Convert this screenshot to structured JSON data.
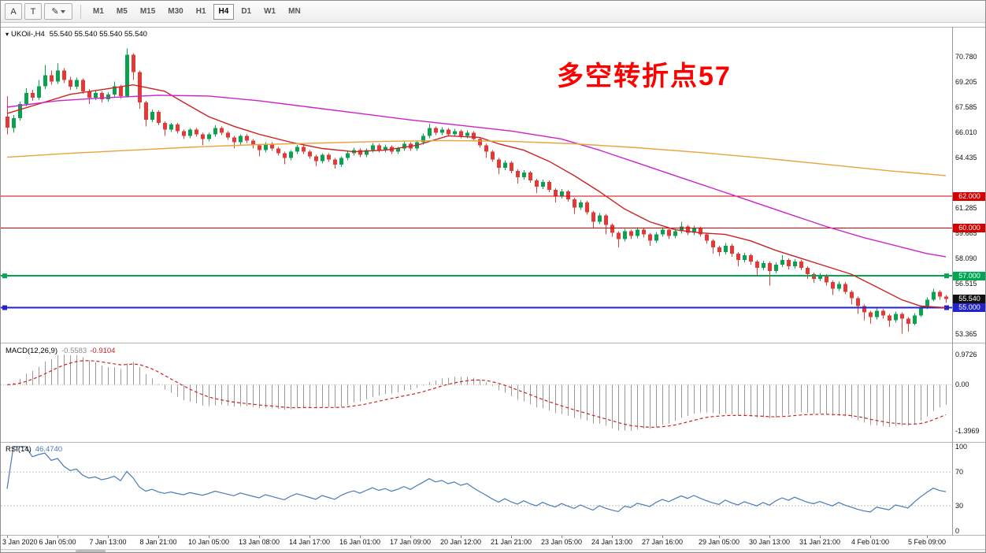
{
  "icons": {
    "triangle_down": "▾"
  },
  "toolbar": {
    "tool_buttons": [
      {
        "label": "A"
      },
      {
        "label": "T"
      },
      {
        "label": "✎",
        "dropdown": true
      }
    ],
    "timeframes": [
      {
        "label": "M1"
      },
      {
        "label": "M5"
      },
      {
        "label": "M15"
      },
      {
        "label": "M30"
      },
      {
        "label": "H1"
      },
      {
        "label": "H4",
        "active": true
      },
      {
        "label": "D1"
      },
      {
        "label": "W1"
      },
      {
        "label": "MN"
      }
    ]
  },
  "chart_header": {
    "symbol_period": "UKOil-,H4",
    "ohlc": "55.540 55.540 55.540 55.540"
  },
  "annotation": {
    "text": "多空转折点57",
    "color": "#ff0000"
  },
  "price_scale": {
    "labels": [
      "70.780",
      "69.205",
      "67.585",
      "66.010",
      "64.435",
      "61.285",
      "59.665",
      "58.090",
      "56.515",
      "53.365"
    ],
    "badges": [
      {
        "value": "62.000",
        "color": "#d40000"
      },
      {
        "value": "60.000",
        "color": "#d40000"
      },
      {
        "value": "57.000",
        "color": "#00a651"
      },
      {
        "value": "55.540",
        "color": "#111111"
      },
      {
        "value": "55.000",
        "color": "#2323cc"
      }
    ]
  },
  "hlines": [
    {
      "price": 62.0,
      "color": "#d40000",
      "width": 1.2,
      "handles": false
    },
    {
      "price": 60.0,
      "color": "#d40000",
      "width": 1.2,
      "handles": false
    },
    {
      "price": 57.0,
      "color": "#00a651",
      "width": 2,
      "handles": true
    },
    {
      "price": 55.0,
      "color": "#2323cc",
      "width": 2,
      "handles": true
    }
  ],
  "macd_panel": {
    "name": "MACD(12,26,9)",
    "value_main": "-0.5583",
    "value_signal": "-0.9104",
    "scale_top": "0.9726",
    "scale_zero": "0.00",
    "scale_bottom": "-1.3969"
  },
  "rsi_panel": {
    "name": "RSI(14)",
    "value": "46.4740",
    "scale": [
      "100",
      "70",
      "30",
      "0"
    ],
    "levels": [
      70,
      30
    ]
  },
  "time_axis": {
    "labels": [
      {
        "i": 0,
        "text": "3 Jan 2020"
      },
      {
        "i": 8,
        "text": "6 Jan 05:00"
      },
      {
        "i": 16,
        "text": "7 Jan 13:00"
      },
      {
        "i": 24,
        "text": "8 Jan 21:00"
      },
      {
        "i": 32,
        "text": "10 Jan 05:00"
      },
      {
        "i": 40,
        "text": "13 Jan 08:00"
      },
      {
        "i": 48,
        "text": "14 Jan 17:00"
      },
      {
        "i": 56,
        "text": "16 Jan 01:00"
      },
      {
        "i": 64,
        "text": "17 Jan 09:00"
      },
      {
        "i": 72,
        "text": "20 Jan 12:00"
      },
      {
        "i": 80,
        "text": "21 Jan 21:00"
      },
      {
        "i": 88,
        "text": "23 Jan 05:00"
      },
      {
        "i": 96,
        "text": "24 Jan 13:00"
      },
      {
        "i": 104,
        "text": "27 Jan 16:00"
      },
      {
        "i": 113,
        "text": "29 Jan 05:00"
      },
      {
        "i": 121,
        "text": "30 Jan 13:00"
      },
      {
        "i": 129,
        "text": "31 Jan 21:00"
      },
      {
        "i": 137,
        "text": "4 Feb 01:00"
      },
      {
        "i": 146,
        "text": "5 Feb 09:00"
      }
    ]
  },
  "colors": {
    "candle_up": "#0ba14e",
    "candle_down": "#e23a37",
    "macd_hist": "#9a9a9a",
    "macd_signal": "#cc2222",
    "rsi_line": "#4a7ab5"
  },
  "chart_data": {
    "type": "candlestick",
    "symbol": "UKOil-",
    "timeframe": "H4",
    "price_range": [
      52.8,
      72.6
    ],
    "candles": [
      [
        67.0,
        68.3,
        65.9,
        66.3
      ],
      [
        66.3,
        67.1,
        66.0,
        66.9
      ],
      [
        66.9,
        67.95,
        66.75,
        67.8
      ],
      [
        67.8,
        68.8,
        67.65,
        68.5
      ],
      [
        68.5,
        68.7,
        68.0,
        68.2
      ],
      [
        68.2,
        69.3,
        68.05,
        68.9
      ],
      [
        68.9,
        70.25,
        68.75,
        69.6
      ],
      [
        69.6,
        69.9,
        69.0,
        69.2
      ],
      [
        69.2,
        70.35,
        69.05,
        69.9
      ],
      [
        69.9,
        70.05,
        69.1,
        69.3
      ],
      [
        69.3,
        69.5,
        68.7,
        68.9
      ],
      [
        68.9,
        69.45,
        68.75,
        69.3
      ],
      [
        69.3,
        69.4,
        68.45,
        68.6
      ],
      [
        68.6,
        68.75,
        67.8,
        68.2
      ],
      [
        68.2,
        68.65,
        68.05,
        68.5
      ],
      [
        68.5,
        68.6,
        67.9,
        68.1
      ],
      [
        68.1,
        68.55,
        67.95,
        68.4
      ],
      [
        68.4,
        69.2,
        68.25,
        68.9
      ],
      [
        68.9,
        69.0,
        68.15,
        68.3
      ],
      [
        68.3,
        71.3,
        68.2,
        70.9
      ],
      [
        70.9,
        71.0,
        69.3,
        69.8
      ],
      [
        69.8,
        69.9,
        67.5,
        67.9
      ],
      [
        67.9,
        68.0,
        66.4,
        66.8
      ],
      [
        66.8,
        67.45,
        66.65,
        67.3
      ],
      [
        67.3,
        67.4,
        66.45,
        66.6
      ],
      [
        66.6,
        66.7,
        65.8,
        66.2
      ],
      [
        66.2,
        66.6,
        66.05,
        66.5
      ],
      [
        66.5,
        66.6,
        65.95,
        66.1
      ],
      [
        66.1,
        66.2,
        65.6,
        65.8
      ],
      [
        65.8,
        66.3,
        65.65,
        66.2
      ],
      [
        66.2,
        66.3,
        65.75,
        65.9
      ],
      [
        65.9,
        66.0,
        65.2,
        65.6
      ],
      [
        65.6,
        66.0,
        65.45,
        65.9
      ],
      [
        65.9,
        66.45,
        65.75,
        66.3
      ],
      [
        66.3,
        66.4,
        65.85,
        66.0
      ],
      [
        66.0,
        66.1,
        65.55,
        65.7
      ],
      [
        65.7,
        65.8,
        65.0,
        65.4
      ],
      [
        65.4,
        65.9,
        65.25,
        65.8
      ],
      [
        65.8,
        65.9,
        65.35,
        65.5
      ],
      [
        65.5,
        65.6,
        65.0,
        65.2
      ],
      [
        65.2,
        65.3,
        64.5,
        64.9
      ],
      [
        64.9,
        65.4,
        64.75,
        65.3
      ],
      [
        65.3,
        65.4,
        64.85,
        65.0
      ],
      [
        65.0,
        65.1,
        64.55,
        64.7
      ],
      [
        64.7,
        64.8,
        64.0,
        64.4
      ],
      [
        64.4,
        64.9,
        64.25,
        64.8
      ],
      [
        64.8,
        65.25,
        64.65,
        65.1
      ],
      [
        65.1,
        65.2,
        64.65,
        64.8
      ],
      [
        64.8,
        64.9,
        64.35,
        64.5
      ],
      [
        64.5,
        64.6,
        63.9,
        64.2
      ],
      [
        64.2,
        64.7,
        64.05,
        64.6
      ],
      [
        64.6,
        64.7,
        64.15,
        64.3
      ],
      [
        64.3,
        64.4,
        63.75,
        64.0
      ],
      [
        64.0,
        64.5,
        63.85,
        64.4
      ],
      [
        64.4,
        64.85,
        64.25,
        64.7
      ],
      [
        64.7,
        65.05,
        64.55,
        64.9
      ],
      [
        64.9,
        65.0,
        64.45,
        64.6
      ],
      [
        64.6,
        65.0,
        64.45,
        64.9
      ],
      [
        64.9,
        65.35,
        64.75,
        65.2
      ],
      [
        65.2,
        65.3,
        64.75,
        64.9
      ],
      [
        64.9,
        65.25,
        64.75,
        65.1
      ],
      [
        65.1,
        65.2,
        64.65,
        64.8
      ],
      [
        64.8,
        65.1,
        64.65,
        65.0
      ],
      [
        65.0,
        65.45,
        64.85,
        65.3
      ],
      [
        65.3,
        65.4,
        64.85,
        65.0
      ],
      [
        65.0,
        65.5,
        64.85,
        65.4
      ],
      [
        65.4,
        65.95,
        65.25,
        65.8
      ],
      [
        65.8,
        66.55,
        65.65,
        66.3
      ],
      [
        66.3,
        66.4,
        65.85,
        66.0
      ],
      [
        66.0,
        66.35,
        65.85,
        66.2
      ],
      [
        66.2,
        66.3,
        65.75,
        65.9
      ],
      [
        65.9,
        66.25,
        65.75,
        66.1
      ],
      [
        66.1,
        66.2,
        65.65,
        65.8
      ],
      [
        65.8,
        66.15,
        65.65,
        66.0
      ],
      [
        66.0,
        66.1,
        65.45,
        65.6
      ],
      [
        65.6,
        65.7,
        65.05,
        65.2
      ],
      [
        65.2,
        65.3,
        64.4,
        64.8
      ],
      [
        64.8,
        64.9,
        64.15,
        64.3
      ],
      [
        64.3,
        64.4,
        63.4,
        63.8
      ],
      [
        63.8,
        64.25,
        63.65,
        64.1
      ],
      [
        64.1,
        64.2,
        63.45,
        63.6
      ],
      [
        63.6,
        63.7,
        62.8,
        63.2
      ],
      [
        63.2,
        63.65,
        63.05,
        63.5
      ],
      [
        63.5,
        63.6,
        62.85,
        63.0
      ],
      [
        63.0,
        63.1,
        62.2,
        62.6
      ],
      [
        62.6,
        63.05,
        62.45,
        62.9
      ],
      [
        62.9,
        63.0,
        62.25,
        62.4
      ],
      [
        62.4,
        62.5,
        61.6,
        62.0
      ],
      [
        62.0,
        62.45,
        61.85,
        62.3
      ],
      [
        62.3,
        62.4,
        61.65,
        61.8
      ],
      [
        61.8,
        61.9,
        60.9,
        61.3
      ],
      [
        61.3,
        61.75,
        61.15,
        61.6
      ],
      [
        61.6,
        61.7,
        60.85,
        61.0
      ],
      [
        61.0,
        61.1,
        60.0,
        60.4
      ],
      [
        60.4,
        60.95,
        60.25,
        60.8
      ],
      [
        60.8,
        60.9,
        59.6,
        60.2
      ],
      [
        60.2,
        60.3,
        59.45,
        59.7
      ],
      [
        59.7,
        59.8,
        58.8,
        59.3
      ],
      [
        59.3,
        59.95,
        59.15,
        59.8
      ],
      [
        59.8,
        59.9,
        59.3,
        59.5
      ],
      [
        59.5,
        60.05,
        59.35,
        59.9
      ],
      [
        59.9,
        60.0,
        59.4,
        59.6
      ],
      [
        59.6,
        59.7,
        58.9,
        59.2
      ],
      [
        59.2,
        59.75,
        59.05,
        59.6
      ],
      [
        59.6,
        60.05,
        59.45,
        59.9
      ],
      [
        59.9,
        60.0,
        59.3,
        59.5
      ],
      [
        59.5,
        59.95,
        59.35,
        59.8
      ],
      [
        59.8,
        60.4,
        59.65,
        60.1
      ],
      [
        60.1,
        60.2,
        59.55,
        59.7
      ],
      [
        59.7,
        60.15,
        59.55,
        60.0
      ],
      [
        60.0,
        60.1,
        59.45,
        59.6
      ],
      [
        59.6,
        59.7,
        59.0,
        59.2
      ],
      [
        59.2,
        59.3,
        58.4,
        58.8
      ],
      [
        58.8,
        58.9,
        58.25,
        58.5
      ],
      [
        58.5,
        59.05,
        58.35,
        58.9
      ],
      [
        58.9,
        59.0,
        58.2,
        58.4
      ],
      [
        58.4,
        58.5,
        57.6,
        58.0
      ],
      [
        58.0,
        58.45,
        57.85,
        58.3
      ],
      [
        58.3,
        58.4,
        57.7,
        57.9
      ],
      [
        57.9,
        58.0,
        57.0,
        57.5
      ],
      [
        57.5,
        57.95,
        57.35,
        57.8
      ],
      [
        57.8,
        57.9,
        56.4,
        57.3
      ],
      [
        57.3,
        57.85,
        57.15,
        57.7
      ],
      [
        57.7,
        58.3,
        57.55,
        58.0
      ],
      [
        58.0,
        58.1,
        57.4,
        57.6
      ],
      [
        57.6,
        58.05,
        57.45,
        57.9
      ],
      [
        57.9,
        58.0,
        57.35,
        57.5
      ],
      [
        57.5,
        57.6,
        56.8,
        57.1
      ],
      [
        57.1,
        57.2,
        56.55,
        56.8
      ],
      [
        56.8,
        57.15,
        56.65,
        57.0
      ],
      [
        57.0,
        57.1,
        56.4,
        56.6
      ],
      [
        56.6,
        56.7,
        55.8,
        56.2
      ],
      [
        56.2,
        56.65,
        56.05,
        56.5
      ],
      [
        56.5,
        56.6,
        55.85,
        56.0
      ],
      [
        56.0,
        56.1,
        55.2,
        55.6
      ],
      [
        55.6,
        55.7,
        54.6,
        55.1
      ],
      [
        55.1,
        55.2,
        54.2,
        54.7
      ],
      [
        54.7,
        54.8,
        54.0,
        54.4
      ],
      [
        54.4,
        54.95,
        54.25,
        54.8
      ],
      [
        54.8,
        54.9,
        54.3,
        54.5
      ],
      [
        54.5,
        54.6,
        53.8,
        54.2
      ],
      [
        54.2,
        54.75,
        54.05,
        54.6
      ],
      [
        54.6,
        54.7,
        53.37,
        54.3
      ],
      [
        54.3,
        54.4,
        53.5,
        54.0
      ],
      [
        54.0,
        54.65,
        53.9,
        54.5
      ],
      [
        54.5,
        55.15,
        54.4,
        55.0
      ],
      [
        55.0,
        55.65,
        54.9,
        55.5
      ],
      [
        55.5,
        56.2,
        55.4,
        56.0
      ],
      [
        56.0,
        56.1,
        55.5,
        55.7
      ],
      [
        55.7,
        55.8,
        55.3,
        55.54
      ]
    ],
    "overlays": [
      {
        "name": "ma-fast-line",
        "color": "#cc2222",
        "i": [
          0,
          5,
          10,
          15,
          20,
          25,
          28,
          32,
          36,
          40,
          45,
          50,
          55,
          60,
          65,
          70,
          75,
          78,
          82,
          86,
          90,
          94,
          98,
          102,
          106,
          110,
          114,
          118,
          122,
          126,
          130,
          134,
          138,
          142,
          145,
          149
        ],
        "v": [
          67.2,
          67.8,
          68.4,
          68.7,
          69.0,
          68.6,
          67.9,
          67.0,
          66.4,
          65.9,
          65.4,
          65.0,
          64.8,
          64.9,
          65.2,
          65.8,
          65.7,
          65.3,
          64.9,
          64.2,
          63.3,
          62.3,
          61.2,
          60.4,
          59.9,
          59.7,
          59.6,
          59.2,
          58.6,
          58.1,
          57.6,
          57.1,
          56.3,
          55.5,
          55.1,
          55.0
        ]
      },
      {
        "name": "ma-mid-line",
        "color": "#cc22cc",
        "i": [
          0,
          8,
          16,
          24,
          32,
          40,
          48,
          56,
          64,
          72,
          80,
          88,
          94,
          100,
          106,
          112,
          118,
          124,
          130,
          136,
          142,
          146,
          149
        ],
        "v": [
          67.6,
          68.0,
          68.2,
          68.35,
          68.3,
          68.0,
          67.6,
          67.2,
          66.8,
          66.45,
          66.1,
          65.6,
          64.9,
          64.1,
          63.3,
          62.5,
          61.7,
          60.9,
          60.1,
          59.4,
          58.8,
          58.4,
          58.2
        ]
      },
      {
        "name": "ma-slow-line",
        "color": "#e8a33c",
        "i": [
          0,
          10,
          20,
          30,
          40,
          50,
          60,
          70,
          80,
          90,
          100,
          110,
          120,
          130,
          140,
          149
        ],
        "v": [
          64.45,
          64.7,
          64.9,
          65.1,
          65.25,
          65.35,
          65.45,
          65.5,
          65.45,
          65.3,
          65.05,
          64.75,
          64.4,
          64.0,
          63.6,
          63.3
        ]
      }
    ],
    "indicators": [
      {
        "name": "MACD",
        "params": [
          12,
          26,
          9
        ],
        "last_main": -0.5583,
        "last_signal": -0.9104
      },
      {
        "name": "RSI",
        "params": [
          14
        ],
        "last": 46.474
      }
    ]
  }
}
